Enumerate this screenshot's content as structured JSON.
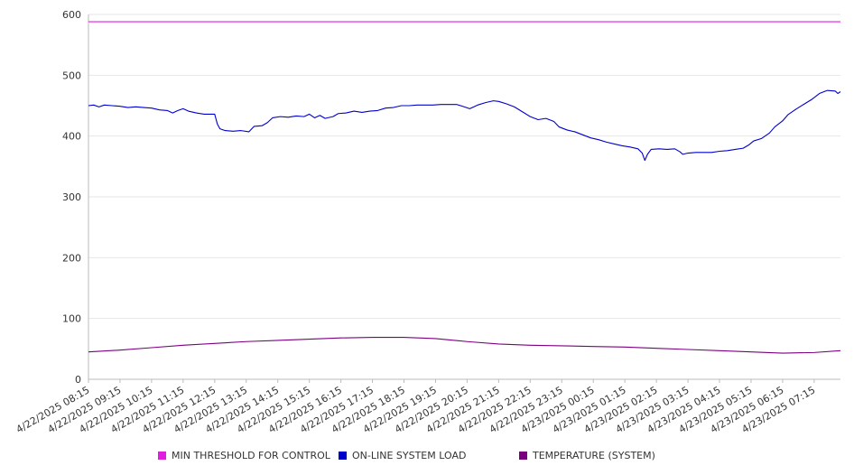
{
  "chart_data": {
    "type": "line",
    "title": "",
    "xlabel": "",
    "ylabel": "",
    "ylim": [
      0,
      600
    ],
    "yticks": [
      0,
      100,
      200,
      300,
      400,
      500,
      600
    ],
    "grid": true,
    "legend_position": "bottom",
    "x_tick_labels": [
      "4/22/2025 08:15",
      "4/22/2025 09:15",
      "4/22/2025 10:15",
      "4/22/2025 11:15",
      "4/22/2025 12:15",
      "4/22/2025 13:15",
      "4/22/2025 14:15",
      "4/22/2025 15:15",
      "4/22/2025 16:15",
      "4/22/2025 17:15",
      "4/22/2025 18:15",
      "4/22/2025 19:15",
      "4/22/2025 20:15",
      "4/22/2025 21:15",
      "4/22/2025 22:15",
      "4/22/2025 23:15",
      "4/23/2025 00:15",
      "4/23/2025 01:15",
      "4/23/2025 02:15",
      "4/23/2025 03:15",
      "4/23/2025 04:15",
      "4/23/2025 05:15",
      "4/23/2025 06:15",
      "4/23/2025 07:15"
    ],
    "x_start": "4/22/2025 08:15",
    "x_end": "4/23/2025 08:05",
    "series": [
      {
        "name": "MIN THRESHOLD FOR CONTROL",
        "color": "#e01ee0",
        "points": [
          [
            "4/22/2025 08:15",
            588
          ],
          [
            "4/23/2025 08:05",
            588
          ]
        ]
      },
      {
        "name": "ON-LINE SYSTEM LOAD",
        "color": "#0000cc",
        "points": [
          [
            "4/22/2025 08:15",
            450
          ],
          [
            "4/22/2025 08:25",
            451
          ],
          [
            "4/22/2025 08:35",
            448
          ],
          [
            "4/22/2025 08:45",
            451
          ],
          [
            "4/22/2025 09:00",
            450
          ],
          [
            "4/22/2025 09:15",
            449
          ],
          [
            "4/22/2025 09:30",
            447
          ],
          [
            "4/22/2025 09:45",
            448
          ],
          [
            "4/22/2025 10:00",
            447
          ],
          [
            "4/22/2025 10:15",
            446
          ],
          [
            "4/22/2025 10:30",
            443
          ],
          [
            "4/22/2025 10:45",
            442
          ],
          [
            "4/22/2025 10:55",
            438
          ],
          [
            "4/22/2025 11:05",
            442
          ],
          [
            "4/22/2025 11:15",
            445
          ],
          [
            "4/22/2025 11:25",
            441
          ],
          [
            "4/22/2025 11:40",
            438
          ],
          [
            "4/22/2025 11:55",
            436
          ],
          [
            "4/22/2025 12:15",
            436
          ],
          [
            "4/22/2025 12:20",
            420
          ],
          [
            "4/22/2025 12:25",
            412
          ],
          [
            "4/22/2025 12:35",
            409
          ],
          [
            "4/22/2025 12:50",
            408
          ],
          [
            "4/22/2025 13:05",
            409
          ],
          [
            "4/22/2025 13:20",
            407
          ],
          [
            "4/22/2025 13:30",
            416
          ],
          [
            "4/22/2025 13:45",
            417
          ],
          [
            "4/22/2025 13:55",
            422
          ],
          [
            "4/22/2025 14:05",
            430
          ],
          [
            "4/22/2025 14:20",
            432
          ],
          [
            "4/22/2025 14:35",
            431
          ],
          [
            "4/22/2025 14:50",
            433
          ],
          [
            "4/22/2025 15:05",
            432
          ],
          [
            "4/22/2025 15:15",
            436
          ],
          [
            "4/22/2025 15:25",
            430
          ],
          [
            "4/22/2025 15:35",
            434
          ],
          [
            "4/22/2025 15:45",
            429
          ],
          [
            "4/22/2025 16:00",
            432
          ],
          [
            "4/22/2025 16:10",
            437
          ],
          [
            "4/22/2025 16:25",
            438
          ],
          [
            "4/22/2025 16:40",
            441
          ],
          [
            "4/22/2025 16:55",
            439
          ],
          [
            "4/22/2025 17:10",
            441
          ],
          [
            "4/22/2025 17:25",
            442
          ],
          [
            "4/22/2025 17:40",
            446
          ],
          [
            "4/22/2025 17:55",
            447
          ],
          [
            "4/22/2025 18:10",
            450
          ],
          [
            "4/22/2025 18:25",
            450
          ],
          [
            "4/22/2025 18:40",
            451
          ],
          [
            "4/22/2025 18:55",
            451
          ],
          [
            "4/22/2025 19:10",
            451
          ],
          [
            "4/22/2025 19:25",
            452
          ],
          [
            "4/22/2025 19:40",
            452
          ],
          [
            "4/22/2025 19:55",
            452
          ],
          [
            "4/22/2025 20:10",
            448
          ],
          [
            "4/22/2025 20:20",
            445
          ],
          [
            "4/22/2025 20:35",
            451
          ],
          [
            "4/22/2025 20:50",
            455
          ],
          [
            "4/22/2025 21:05",
            458
          ],
          [
            "4/22/2025 21:15",
            457
          ],
          [
            "4/22/2025 21:30",
            453
          ],
          [
            "4/22/2025 21:45",
            448
          ],
          [
            "4/22/2025 22:00",
            440
          ],
          [
            "4/22/2025 22:15",
            432
          ],
          [
            "4/22/2025 22:30",
            427
          ],
          [
            "4/22/2025 22:45",
            429
          ],
          [
            "4/22/2025 23:00",
            424
          ],
          [
            "4/22/2025 23:10",
            415
          ],
          [
            "4/22/2025 23:25",
            410
          ],
          [
            "4/22/2025 23:40",
            407
          ],
          [
            "4/22/2025 23:55",
            402
          ],
          [
            "4/23/2025 00:10",
            397
          ],
          [
            "4/23/2025 00:25",
            394
          ],
          [
            "4/23/2025 00:40",
            390
          ],
          [
            "4/23/2025 00:55",
            387
          ],
          [
            "4/23/2025 01:10",
            384
          ],
          [
            "4/23/2025 01:25",
            382
          ],
          [
            "4/23/2025 01:40",
            379
          ],
          [
            "4/23/2025 01:48",
            372
          ],
          [
            "4/23/2025 01:53",
            360
          ],
          [
            "4/23/2025 01:58",
            370
          ],
          [
            "4/23/2025 02:05",
            378
          ],
          [
            "4/23/2025 02:20",
            379
          ],
          [
            "4/23/2025 02:35",
            378
          ],
          [
            "4/23/2025 02:50",
            379
          ],
          [
            "4/23/2025 03:00",
            374
          ],
          [
            "4/23/2025 03:05",
            370
          ],
          [
            "4/23/2025 03:15",
            372
          ],
          [
            "4/23/2025 03:30",
            373
          ],
          [
            "4/23/2025 03:45",
            373
          ],
          [
            "4/23/2025 04:00",
            373
          ],
          [
            "4/23/2025 04:15",
            375
          ],
          [
            "4/23/2025 04:30",
            376
          ],
          [
            "4/23/2025 04:45",
            378
          ],
          [
            "4/23/2025 05:00",
            380
          ],
          [
            "4/23/2025 05:10",
            385
          ],
          [
            "4/23/2025 05:20",
            392
          ],
          [
            "4/23/2025 05:35",
            396
          ],
          [
            "4/23/2025 05:50",
            405
          ],
          [
            "4/23/2025 06:00",
            415
          ],
          [
            "4/23/2025 06:15",
            425
          ],
          [
            "4/23/2025 06:25",
            435
          ],
          [
            "4/23/2025 06:40",
            444
          ],
          [
            "4/23/2025 06:55",
            452
          ],
          [
            "4/23/2025 07:10",
            460
          ],
          [
            "4/23/2025 07:25",
            470
          ],
          [
            "4/23/2025 07:40",
            475
          ],
          [
            "4/23/2025 07:55",
            474
          ],
          [
            "4/23/2025 08:00",
            470
          ],
          [
            "4/23/2025 08:05",
            473
          ]
        ]
      },
      {
        "name": "TEMPERATURE (SYSTEM)",
        "color": "#7b0080",
        "points": [
          [
            "4/22/2025 08:15",
            45
          ],
          [
            "4/22/2025 09:15",
            48
          ],
          [
            "4/22/2025 10:15",
            52
          ],
          [
            "4/22/2025 11:15",
            56
          ],
          [
            "4/22/2025 12:15",
            59
          ],
          [
            "4/22/2025 13:15",
            62
          ],
          [
            "4/22/2025 14:15",
            64
          ],
          [
            "4/22/2025 15:15",
            66
          ],
          [
            "4/22/2025 16:15",
            68
          ],
          [
            "4/22/2025 17:15",
            69
          ],
          [
            "4/22/2025 18:15",
            69
          ],
          [
            "4/22/2025 19:15",
            67
          ],
          [
            "4/22/2025 20:15",
            62
          ],
          [
            "4/22/2025 21:15",
            58
          ],
          [
            "4/22/2025 22:15",
            56
          ],
          [
            "4/22/2025 23:15",
            55
          ],
          [
            "4/23/2025 00:15",
            54
          ],
          [
            "4/23/2025 01:15",
            53
          ],
          [
            "4/23/2025 02:15",
            51
          ],
          [
            "4/23/2025 03:15",
            49
          ],
          [
            "4/23/2025 04:15",
            47
          ],
          [
            "4/23/2025 05:15",
            45
          ],
          [
            "4/23/2025 06:15",
            43
          ],
          [
            "4/23/2025 07:15",
            44
          ],
          [
            "4/23/2025 08:05",
            47
          ]
        ]
      }
    ]
  }
}
